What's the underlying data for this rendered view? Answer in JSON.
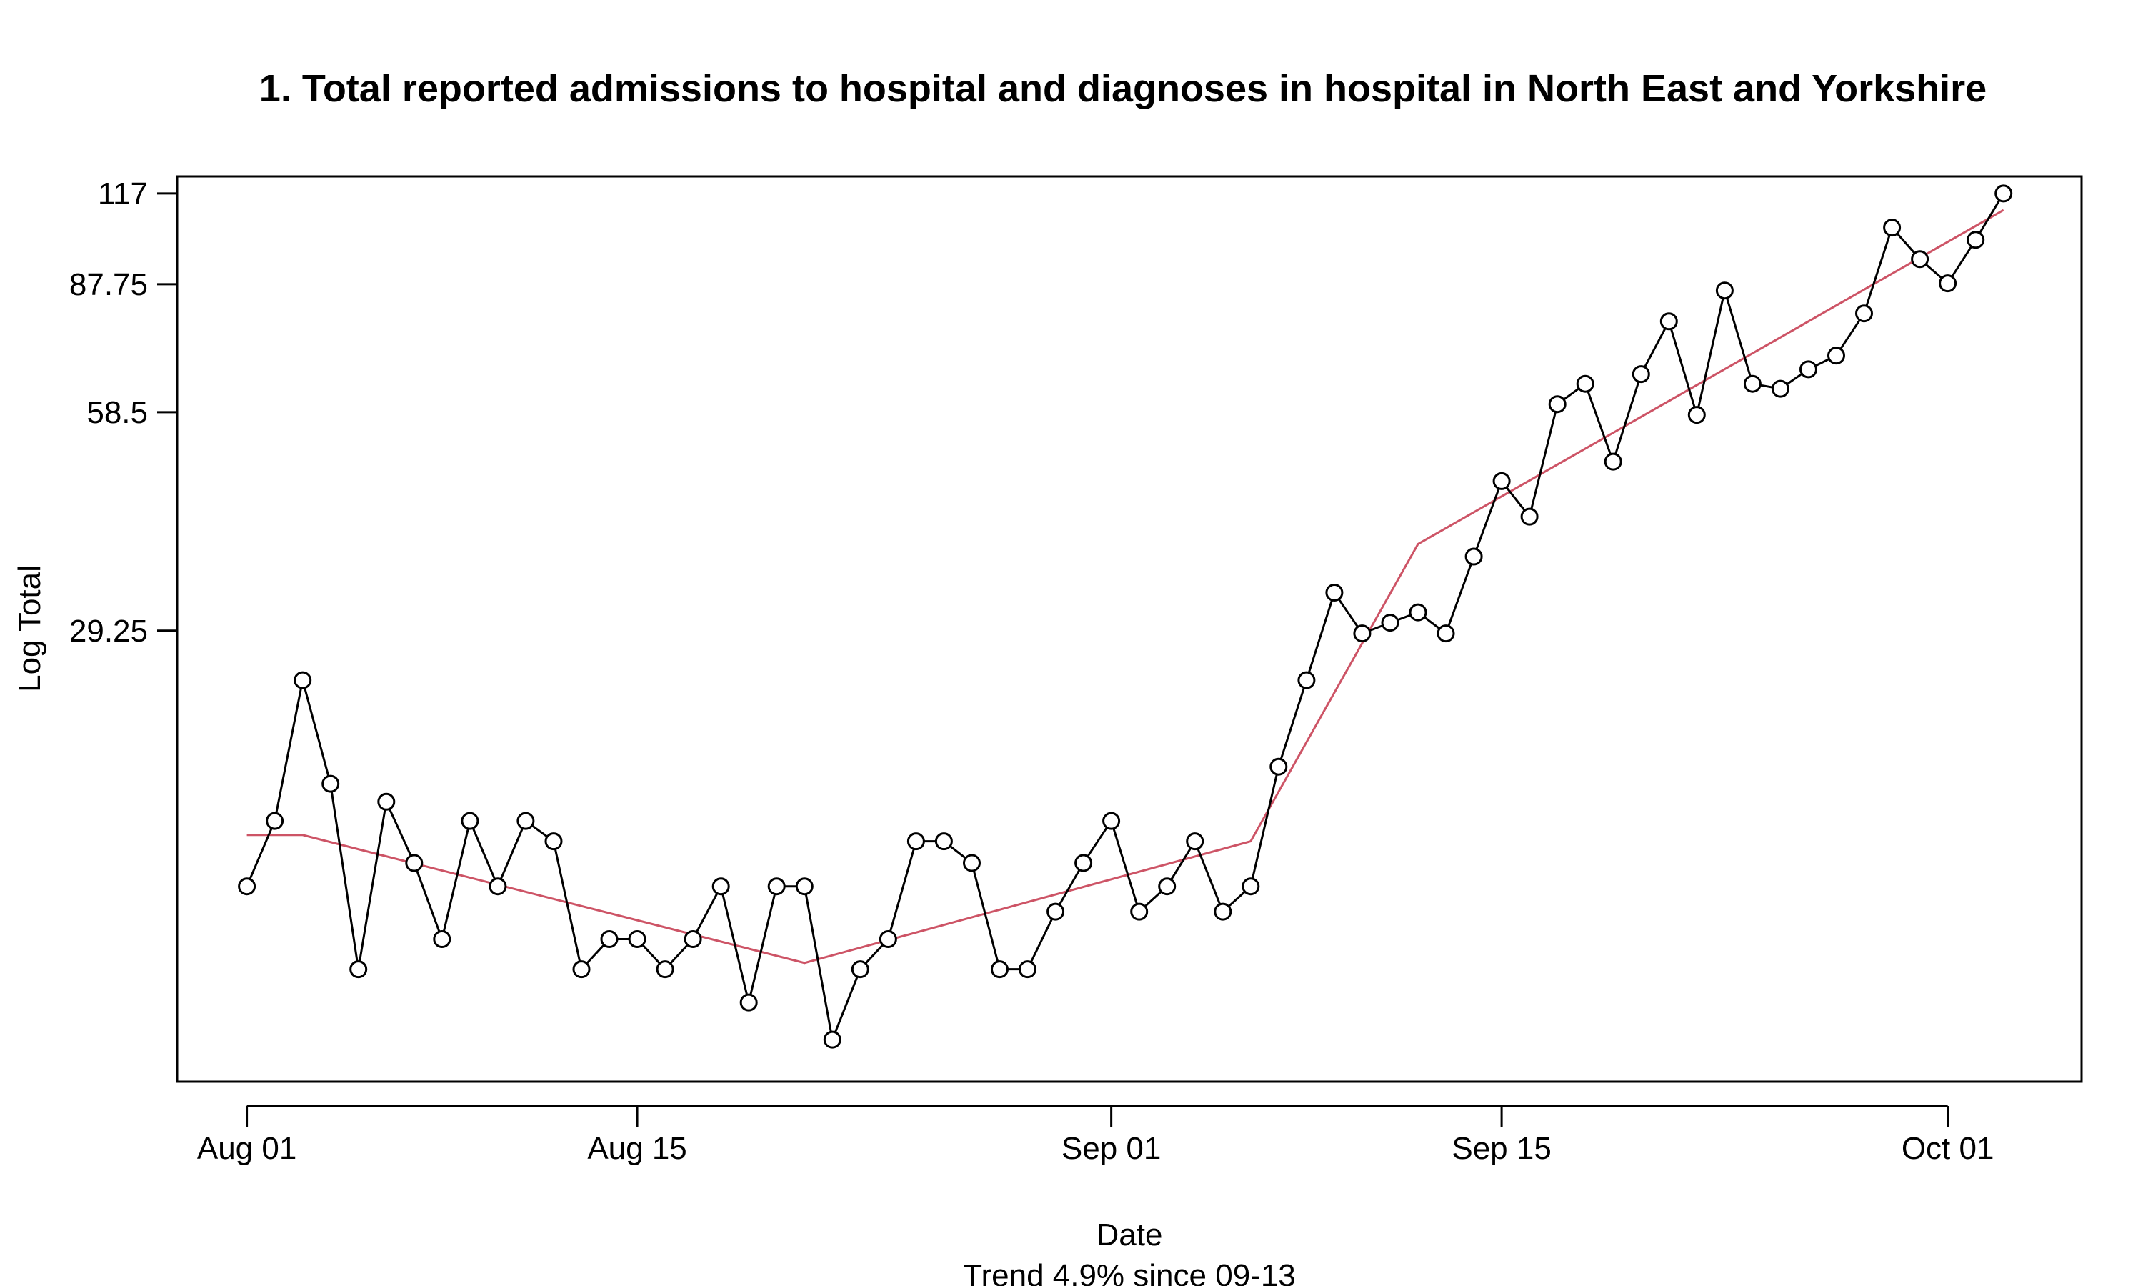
{
  "chart_data": {
    "type": "line",
    "title": "1. Total reported admissions to hospital and diagnoses in hospital in North East and Yorkshire",
    "xlabel": "Date",
    "ylabel": "Log Total",
    "subtitle": "Trend 4.9% since 09-13",
    "y_scale": "log",
    "x_ticks": [
      {
        "day": 0,
        "label": "Aug 01"
      },
      {
        "day": 14,
        "label": "Aug 15"
      },
      {
        "day": 31,
        "label": "Sep 01"
      },
      {
        "day": 45,
        "label": "Sep 15"
      },
      {
        "day": 61,
        "label": "Oct 01"
      }
    ],
    "y_ticks": [
      {
        "value": 29.25,
        "label": "29.25"
      },
      {
        "value": 58.5,
        "label": "58.5"
      },
      {
        "value": 87.75,
        "label": "87.75"
      },
      {
        "value": 117,
        "label": "117"
      }
    ],
    "x_range": [
      -2.5,
      65.8
    ],
    "y_range": [
      7.0,
      123.5
    ],
    "series": [
      {
        "name": "Total",
        "color": "#000000",
        "marker": "open-circle",
        "x": [
          0,
          1,
          2,
          3,
          4,
          5,
          6,
          7,
          8,
          9,
          10,
          11,
          12,
          13,
          14,
          15,
          16,
          17,
          18,
          19,
          20,
          21,
          22,
          23,
          24,
          25,
          26,
          27,
          28,
          29,
          30,
          31,
          32,
          33,
          34,
          35,
          36,
          37,
          38,
          39,
          40,
          41,
          42,
          43,
          44,
          45,
          46,
          47,
          48,
          49,
          50,
          51,
          52,
          53,
          54,
          55,
          56,
          57,
          58,
          59,
          60,
          61,
          62,
          63
        ],
        "values": [
          13,
          16,
          25,
          18,
          10,
          17,
          14,
          11,
          16,
          13,
          16,
          15,
          10,
          11,
          11,
          10,
          11,
          13,
          9,
          13,
          13,
          8,
          10,
          11,
          15,
          15,
          14,
          10,
          10,
          12,
          14,
          16,
          12,
          13,
          15,
          12,
          13,
          19,
          25,
          33,
          29,
          30,
          31,
          29,
          37,
          47,
          42,
          60,
          64,
          50,
          66,
          78,
          58,
          86,
          64,
          63,
          67,
          70,
          80,
          105,
          95,
          88,
          101,
          117
        ]
      },
      {
        "name": "Trend",
        "color": "#cd5466",
        "marker": "none",
        "x": [
          0,
          2,
          20,
          36,
          42,
          63
        ],
        "values": [
          15.3,
          15.3,
          10.2,
          15.0,
          38.5,
          111
        ]
      }
    ]
  }
}
